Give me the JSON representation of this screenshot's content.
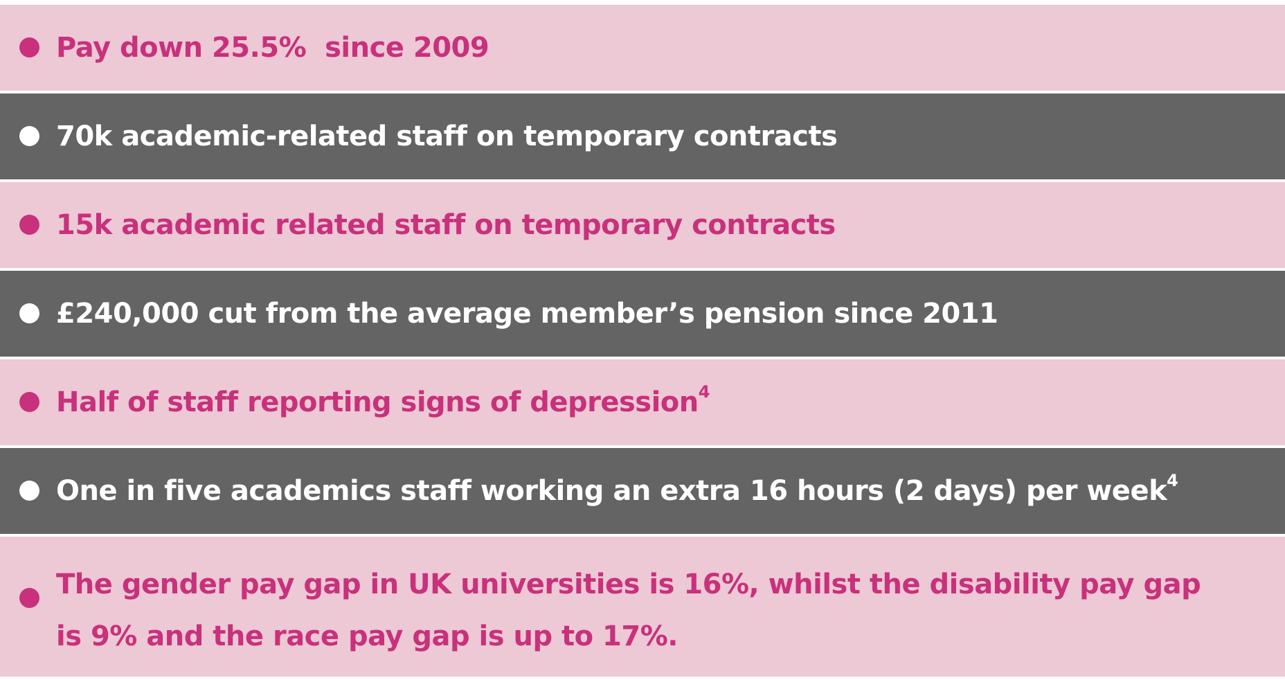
{
  "items": [
    {
      "text": "Pay down 25.5%  since 2009",
      "sup": "",
      "theme": "pink"
    },
    {
      "text": "70k academic-related staff on temporary contracts",
      "sup": "",
      "theme": "dark"
    },
    {
      "text": "15k academic related staff on temporary contracts",
      "sup": "",
      "theme": "pink"
    },
    {
      "text": "£240,000 cut from the average member’s pension since 2011",
      "sup": "",
      "theme": "dark"
    },
    {
      "text": "Half of staff reporting signs of depression",
      "sup": "4",
      "theme": "pink"
    },
    {
      "text": "One in five academics staff working an extra 16 hours (2 days) per week",
      "sup": "4",
      "theme": "dark"
    },
    {
      "text": "The gender pay gap in UK universities is 16%, whilst the disability pay gap is 9% and the race pay gap is up to 17%.",
      "sup": "",
      "theme": "pink"
    }
  ],
  "colors": {
    "pink_bg": "#edc8d5",
    "pink_text": "#c8317b",
    "dark_bg": "#646464",
    "dark_text": "#ffffff"
  }
}
